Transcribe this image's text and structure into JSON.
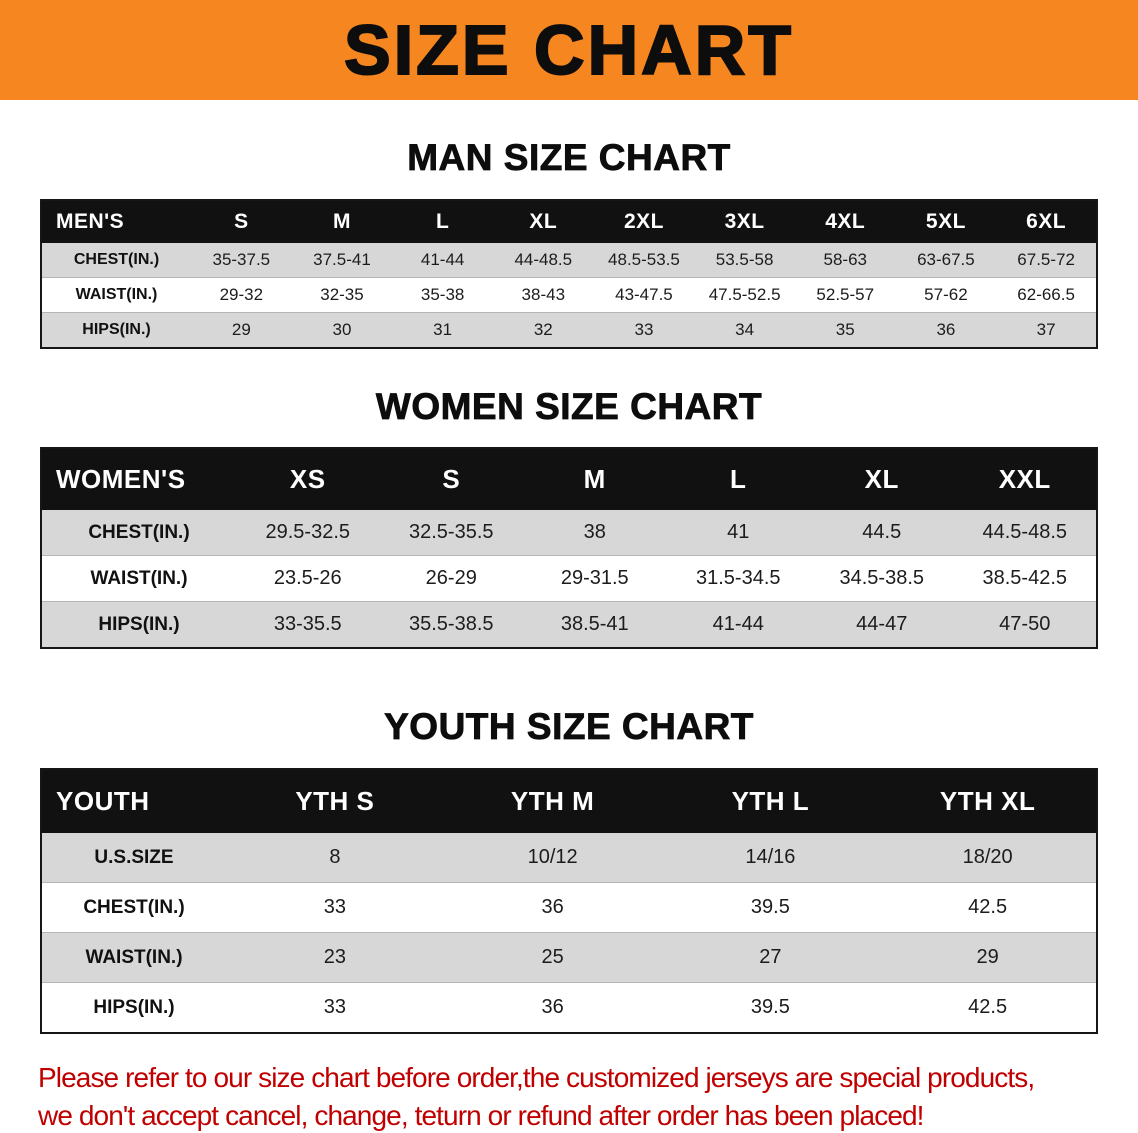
{
  "banner": {
    "title": "SIZE CHART"
  },
  "colors": {
    "banner_bg": "#F6861F",
    "table_header_bg": "#111111",
    "row_stripe_bg": "#D7D7D7",
    "disclaimer_text": "#C00000"
  },
  "sections": [
    {
      "id": "men",
      "heading": "MAN SIZE CHART",
      "table": {
        "header": [
          "MEN'S",
          "S",
          "M",
          "L",
          "XL",
          "2XL",
          "3XL",
          "4XL",
          "5XL",
          "6XL"
        ],
        "rows": [
          {
            "label": "CHEST(IN.)",
            "values": [
              "35-37.5",
              "37.5-41",
              "41-44",
              "44-48.5",
              "48.5-53.5",
              "53.5-58",
              "58-63",
              "63-67.5",
              "67.5-72"
            ]
          },
          {
            "label": "WAIST(IN.)",
            "values": [
              "29-32",
              "32-35",
              "35-38",
              "38-43",
              "43-47.5",
              "47.5-52.5",
              "52.5-57",
              "57-62",
              "62-66.5"
            ]
          },
          {
            "label": "HIPS(IN.)",
            "values": [
              "29",
              "30",
              "31",
              "32",
              "33",
              "34",
              "35",
              "36",
              "37"
            ]
          }
        ]
      }
    },
    {
      "id": "women",
      "heading": "WOMEN SIZE CHART",
      "table": {
        "header": [
          "WOMEN'S",
          "XS",
          "S",
          "M",
          "L",
          "XL",
          "XXL"
        ],
        "rows": [
          {
            "label": "CHEST(IN.)",
            "values": [
              "29.5-32.5",
              "32.5-35.5",
              "38",
              "41",
              "44.5",
              "44.5-48.5"
            ]
          },
          {
            "label": "WAIST(IN.)",
            "values": [
              "23.5-26",
              "26-29",
              "29-31.5",
              "31.5-34.5",
              "34.5-38.5",
              "38.5-42.5"
            ]
          },
          {
            "label": "HIPS(IN.)",
            "values": [
              "33-35.5",
              "35.5-38.5",
              "38.5-41",
              "41-44",
              "44-47",
              "47-50"
            ]
          }
        ]
      }
    },
    {
      "id": "youth",
      "heading": "YOUTH SIZE CHART",
      "table": {
        "header": [
          "YOUTH",
          "YTH S",
          "YTH M",
          "YTH L",
          "YTH XL"
        ],
        "rows": [
          {
            "label": "U.S.SIZE",
            "values": [
              "8",
              "10/12",
              "14/16",
              "18/20"
            ]
          },
          {
            "label": "CHEST(IN.)",
            "values": [
              "33",
              "36",
              "39.5",
              "42.5"
            ]
          },
          {
            "label": "WAIST(IN.)",
            "values": [
              "23",
              "25",
              "27",
              "29"
            ]
          },
          {
            "label": "HIPS(IN.)",
            "values": [
              "33",
              "36",
              "39.5",
              "42.5"
            ]
          }
        ]
      }
    }
  ],
  "disclaimer": {
    "line1": "Please refer to our size chart before order,the customized jerseys are special products,",
    "line2": "we don't accept cancel, change, teturn or refund after order has been placed!"
  }
}
